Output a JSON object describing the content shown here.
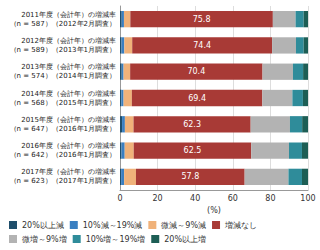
{
  "chart_data": {
    "type": "bar",
    "orientation": "horizontal",
    "stacked": true,
    "grid": true,
    "legend": "bottom",
    "x_label": "(%)",
    "xlim": [
      0,
      100
    ],
    "xticks": [
      0,
      20,
      40,
      60,
      80,
      100
    ],
    "categories": [
      "2011年度（会計年）の増減率\n（n = 587）（2012年2月調査）",
      "2012年度（会計年）の増減率\n（n = 589）（2013年1月調査）",
      "2013年度（会計年）の増減率\n（n = 574）（2014年1月調査）",
      "2014年度（会計年）の増減率\n（n = 568）（2015年1月調査）",
      "2015年度（会計年）の増減率\n（n = 647）（2016年1月調査）",
      "2016年度（会計年）の増減率\n（n = 642）（2016年1月調査）",
      "2017年度（会計年）の増減率\n（n = 623）（2017年1月調査）"
    ],
    "series": [
      {
        "name": "20%以上減",
        "color": "#1f4e6b",
        "values": [
          0.9,
          0.8,
          0.9,
          0.7,
          1.1,
          0.8,
          0.6
        ]
      },
      {
        "name": "10%減～19%減",
        "color": "#3a7fc1",
        "values": [
          1.2,
          1.5,
          1.0,
          1.2,
          1.5,
          1.7,
          1.6
        ]
      },
      {
        "name": "微減～9%減",
        "color": "#f0b27a",
        "values": [
          3.4,
          4.2,
          3.5,
          4.4,
          4.6,
          4.8,
          6.3
        ]
      },
      {
        "name": "増減なし",
        "color": "#a83a36",
        "data_labels": true,
        "values": [
          75.8,
          74.4,
          70.4,
          69.4,
          62.3,
          62.5,
          57.8
        ]
      },
      {
        "name": "微増～9%増",
        "color": "#b3b3b3",
        "values": [
          12.1,
          12.7,
          16.2,
          16.0,
          20.9,
          20.1,
          23.3
        ]
      },
      {
        "name": "10%増～19%増",
        "color": "#2f8c9a",
        "values": [
          4.3,
          4.1,
          5.4,
          5.6,
          6.5,
          6.9,
          7.2
        ]
      },
      {
        "name": "20%以上増",
        "color": "#1d5e55",
        "values": [
          2.3,
          2.3,
          2.6,
          2.7,
          3.1,
          3.2,
          3.2
        ]
      }
    ]
  }
}
